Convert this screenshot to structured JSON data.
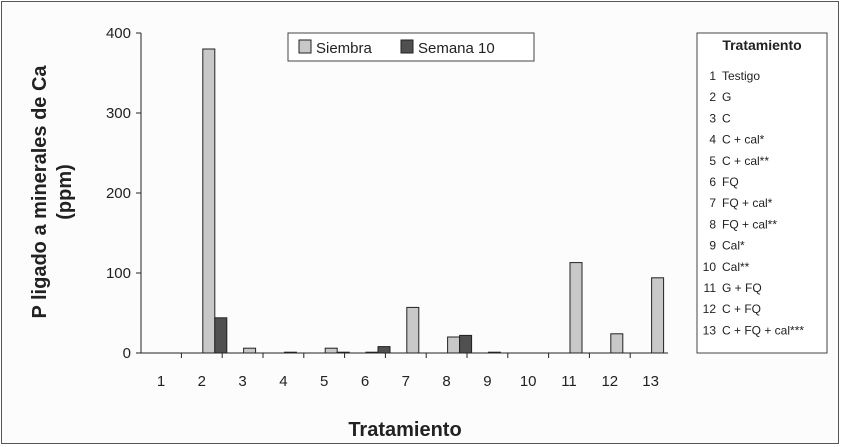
{
  "chart_data": {
    "type": "bar",
    "title": "",
    "xlabel": "Tratamiento",
    "ylabel_line1": "P ligado a minerales de Ca",
    "ylabel_line2": "(ppm)",
    "categories": [
      "1",
      "2",
      "3",
      "4",
      "5",
      "6",
      "7",
      "8",
      "9",
      "10",
      "11",
      "12",
      "13"
    ],
    "series": [
      {
        "name": "Siembra",
        "color": "#c8c8c8",
        "values": [
          0,
          380,
          6,
          1,
          6,
          1,
          57,
          20,
          1,
          0,
          113,
          24,
          94
        ]
      },
      {
        "name": "Semana 10",
        "color": "#505050",
        "values": [
          0,
          44,
          0,
          0,
          1,
          8,
          0,
          22,
          0,
          0,
          0,
          0,
          0
        ]
      }
    ],
    "yticks": [
      0,
      100,
      200,
      300,
      400
    ],
    "ylim": [
      0,
      400
    ],
    "grid": false,
    "legend_position": "top-center"
  },
  "treatment_legend": {
    "title": "Tratamiento",
    "items": [
      {
        "num": "1",
        "label": "Testigo"
      },
      {
        "num": "2",
        "label": "G"
      },
      {
        "num": "3",
        "label": "C"
      },
      {
        "num": "4",
        "label": "C + cal*"
      },
      {
        "num": "5",
        "label": "C + cal**"
      },
      {
        "num": "6",
        "label": "FQ"
      },
      {
        "num": "7",
        "label": "FQ + cal*"
      },
      {
        "num": "8",
        "label": "FQ + cal**"
      },
      {
        "num": "9",
        "label": "Cal*"
      },
      {
        "num": "10",
        "label": "Cal**"
      },
      {
        "num": "11",
        "label": "G + FQ"
      },
      {
        "num": "12",
        "label": "C + FQ"
      },
      {
        "num": "13",
        "label": "C + FQ + cal***"
      }
    ]
  }
}
